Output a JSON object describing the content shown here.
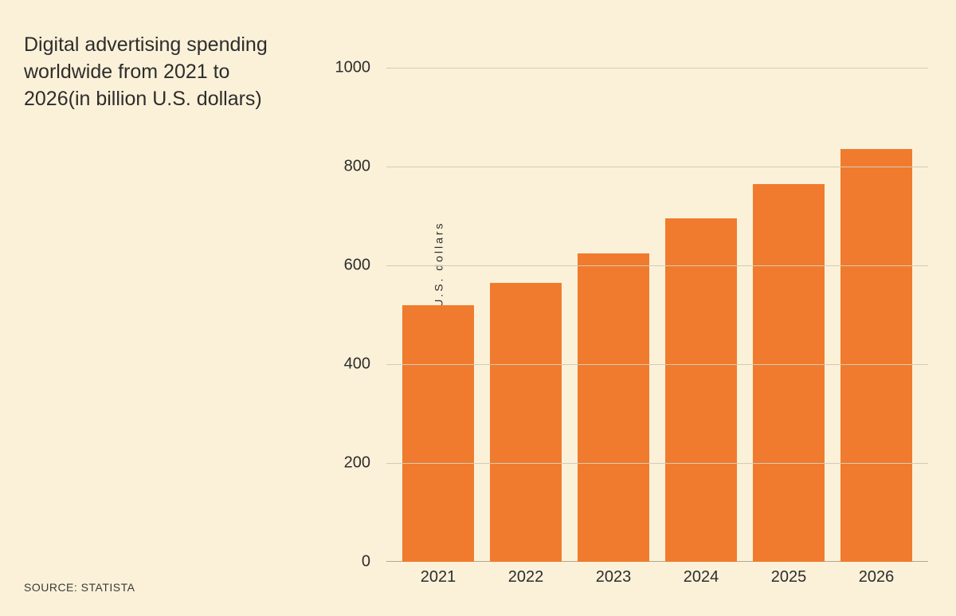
{
  "title": "Digital advertising spending worldwide from 2021 to 2026(in billion U.S. dollars)",
  "source": "SOURCE: STATISTA",
  "chart": {
    "type": "bar",
    "ylabel": "Speding in billion U.S. dollars",
    "categories": [
      "2021",
      "2022",
      "2023",
      "2024",
      "2025",
      "2026"
    ],
    "values": [
      520,
      565,
      625,
      695,
      765,
      835
    ],
    "bar_color": "#f07b2e",
    "background_color": "#fbf1d8",
    "grid_color": "#d4cbb5",
    "text_color": "#2d2d2d",
    "ylim": [
      0,
      1000
    ],
    "yticks": [
      0,
      200,
      400,
      600,
      800,
      1000
    ],
    "bar_width": 0.82,
    "title_fontsize": 25,
    "tick_fontsize": 20,
    "ylabel_fontsize": 14,
    "ylabel_letterspacing": 3,
    "source_fontsize": 14
  }
}
